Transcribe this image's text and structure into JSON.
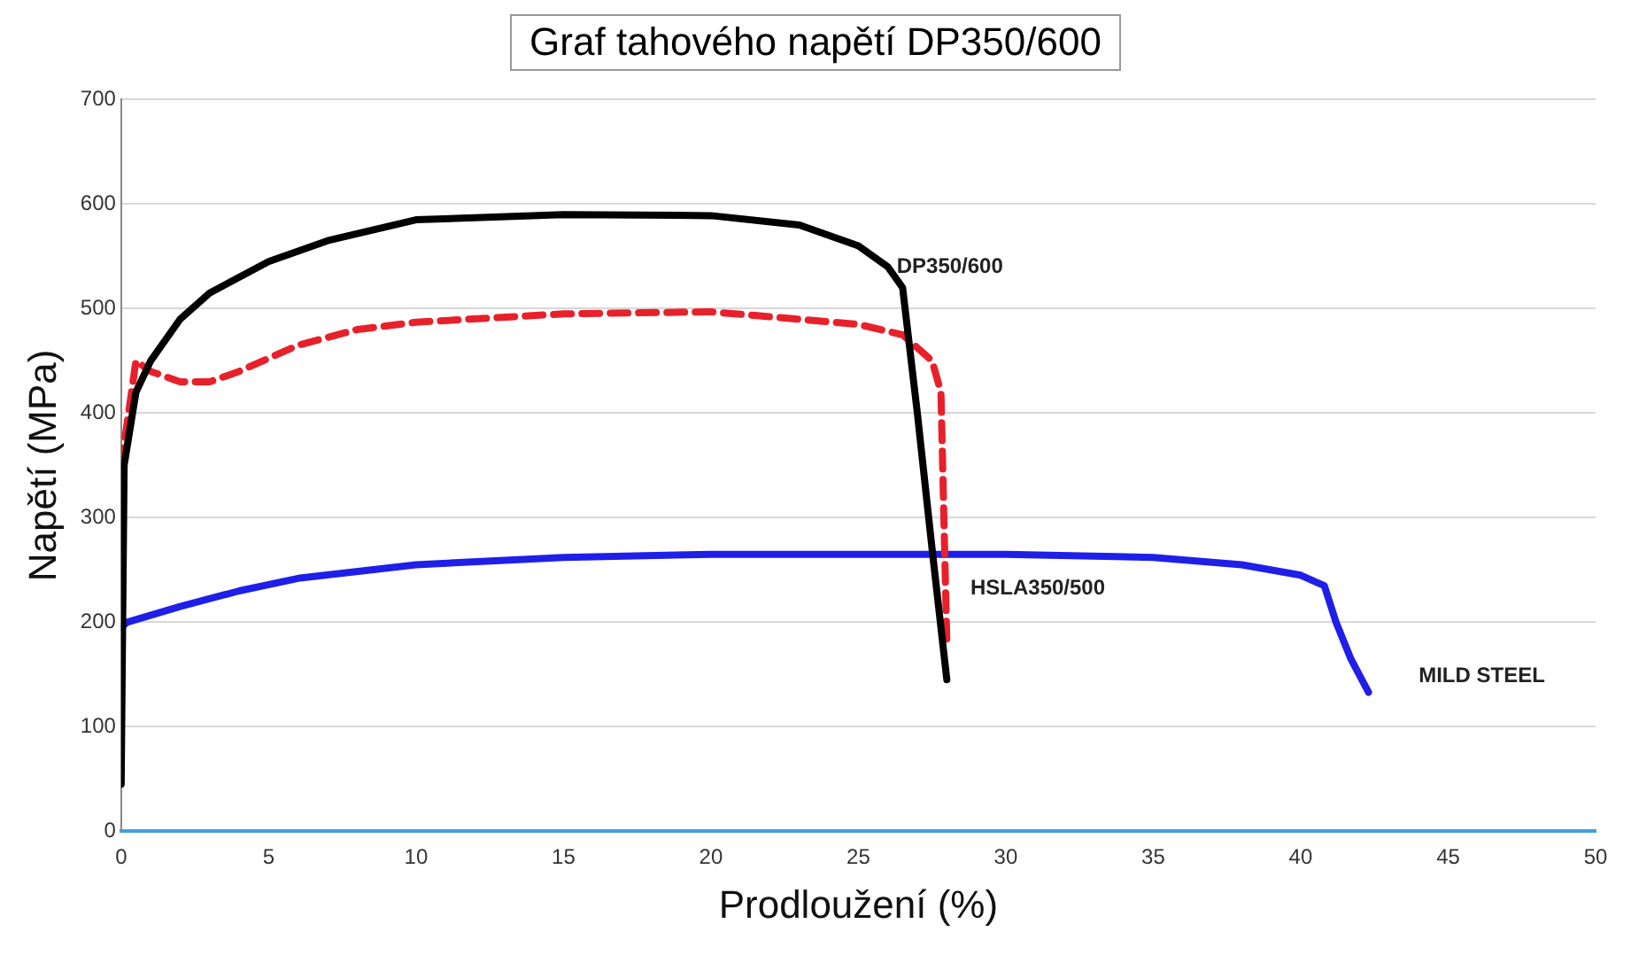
{
  "chart_data": {
    "type": "line",
    "title": "Graf tahového napětí DP350/600",
    "xlabel": "Prodloužení (%)",
    "ylabel": "Napětí (MPa)",
    "xlim": [
      0,
      50
    ],
    "xticks": [
      0,
      5,
      10,
      15,
      20,
      25,
      30,
      35,
      40,
      45,
      50
    ],
    "ylim": [
      0,
      700
    ],
    "yticks": [
      0,
      100,
      200,
      300,
      400,
      500,
      600,
      700
    ],
    "grid": "y",
    "legend": false,
    "marker": "none",
    "series": [
      {
        "name": "DP350/600",
        "color": "#000000",
        "line_style": "solid",
        "x": [
          0,
          0.1,
          0.5,
          1,
          2,
          3,
          5,
          7,
          10,
          15,
          20,
          23,
          25,
          26,
          26.5,
          27,
          27.5,
          28
        ],
        "values": [
          45,
          350,
          420,
          450,
          490,
          515,
          545,
          565,
          585,
          590,
          589,
          580,
          560,
          540,
          520,
          400,
          270,
          145
        ]
      },
      {
        "name": "HSLA350/500",
        "color": "#e8202a",
        "line_style": "dashed",
        "x": [
          0,
          0.5,
          1,
          2,
          3,
          4,
          6,
          8,
          10,
          15,
          20,
          25,
          26.5,
          27.5,
          27.8,
          27.9,
          28
        ],
        "values": [
          350,
          450,
          440,
          430,
          430,
          440,
          465,
          480,
          487,
          495,
          497,
          485,
          475,
          450,
          420,
          300,
          180
        ]
      },
      {
        "name": "MILD STEEL",
        "color": "#1f1fe8",
        "line_style": "solid",
        "x": [
          0,
          0.2,
          2,
          4,
          6,
          10,
          15,
          20,
          25,
          30,
          35,
          38,
          40,
          40.8,
          41.2,
          41.7,
          42.3
        ],
        "values": [
          195,
          200,
          215,
          230,
          242,
          255,
          262,
          265,
          265,
          265,
          262,
          255,
          245,
          235,
          200,
          165,
          133
        ]
      }
    ]
  }
}
